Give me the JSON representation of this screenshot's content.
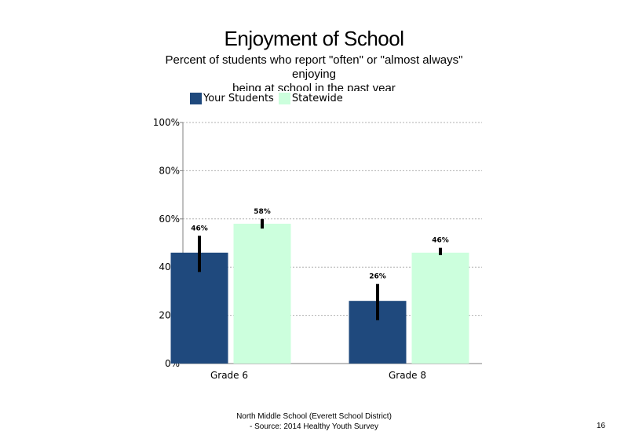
{
  "colors": {
    "your_students": "#1F497D",
    "statewide": "#CCFFDD",
    "error_bar": "#000000",
    "grid": "#B0B0B0",
    "axis": "#7F7F7F"
  },
  "chart_data": {
    "type": "bar",
    "title": "Enjoyment of School",
    "subtitle": "Percent of students  who report \"often\" or \"almost always\"\nenjoying\nbeing at school in the past year",
    "categories": [
      "Grade 6",
      "Grade 8"
    ],
    "series": [
      {
        "name": "Your Students",
        "values": [
          46,
          26
        ],
        "labels": [
          "46%",
          "26%"
        ],
        "error_low": [
          38,
          18
        ],
        "error_high": [
          53,
          33
        ]
      },
      {
        "name": "Statewide",
        "values": [
          58,
          46
        ],
        "labels": [
          "58%",
          "46%"
        ],
        "error_low": [
          56,
          45
        ],
        "error_high": [
          60,
          48
        ]
      }
    ],
    "ylim": [
      0,
      100
    ],
    "yticks": [
      0,
      20,
      40,
      60,
      80,
      100
    ],
    "ytick_labels": [
      "0%",
      "20%",
      "40%",
      "60%",
      "80%",
      "100%"
    ],
    "xlabel": "",
    "ylabel": "",
    "grid": true,
    "legend_position": "top-left"
  },
  "footer": {
    "line1": "North Middle School (Everett School District)",
    "line2": "- Source: 2014 Healthy  Youth Survey"
  },
  "page_number": "16"
}
